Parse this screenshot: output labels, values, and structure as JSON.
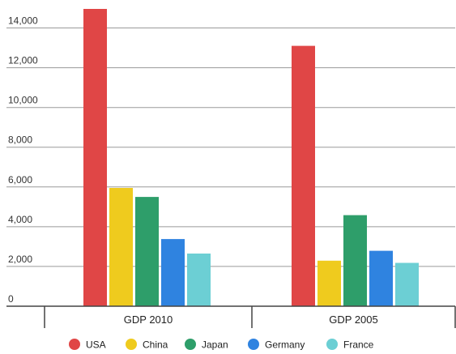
{
  "chart_data": {
    "type": "bar",
    "categories": [
      "GDP 2010",
      "GDP 2005"
    ],
    "series": [
      {
        "name": "USA",
        "color": "#e04646",
        "values": [
          14960,
          13100
        ]
      },
      {
        "name": "China",
        "color": "#efcb1e",
        "values": [
          5950,
          2290
        ]
      },
      {
        "name": "Japan",
        "color": "#2e9e6a",
        "values": [
          5500,
          4580
        ]
      },
      {
        "name": "Germany",
        "color": "#2f83e0",
        "values": [
          3380,
          2790
        ]
      },
      {
        "name": "France",
        "color": "#6ccfd4",
        "values": [
          2650,
          2180
        ]
      }
    ],
    "y_ticks": [
      "0",
      "2,000",
      "4,000",
      "6,000",
      "8,000",
      "10,000",
      "12,000",
      "14,000"
    ],
    "ylim": [
      0,
      15000
    ],
    "title": "",
    "xlabel": "",
    "ylabel": "",
    "grid": true,
    "legend_position": "bottom"
  }
}
